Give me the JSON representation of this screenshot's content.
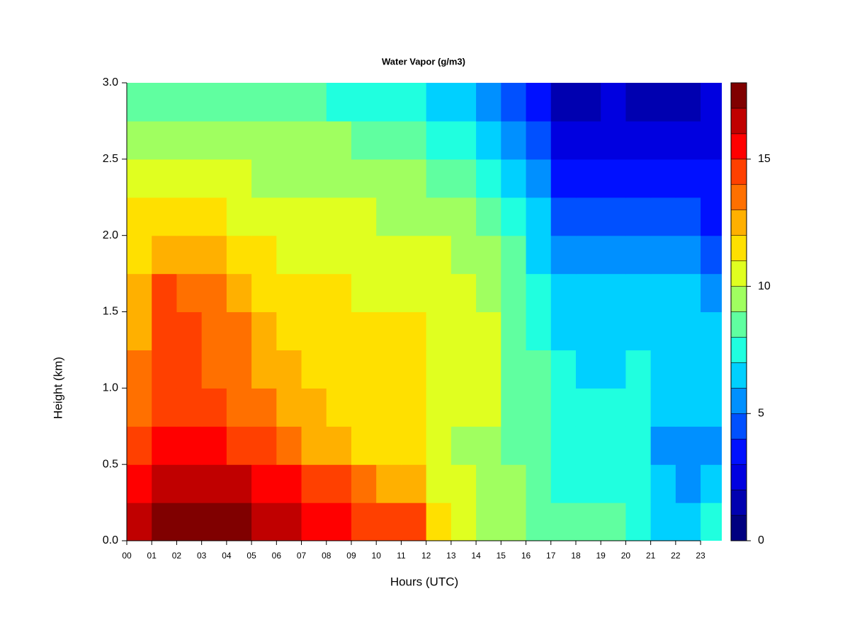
{
  "chart_data": {
    "type": "heatmap",
    "title": "Water Vapor (g/m3)",
    "xlabel": "Hours (UTC)",
    "ylabel": "Height (km)",
    "x": [
      0.5,
      1.5,
      2.5,
      3.5,
      4.5,
      5.5,
      6.5,
      7.5,
      8.5,
      9.5,
      10.5,
      11.5,
      12.5,
      13.5,
      14.5,
      15.5,
      16.5,
      17.5,
      18.5,
      19.5,
      20.5,
      21.5,
      22.5,
      23.5
    ],
    "y": [
      0.125,
      0.375,
      0.625,
      0.875,
      1.125,
      1.375,
      1.625,
      1.875,
      2.125,
      2.375,
      2.625,
      2.875
    ],
    "values": [
      [
        16.5,
        17,
        17.5,
        17.5,
        17,
        16.5,
        16.5,
        15.5,
        15.5,
        14.5,
        14.5,
        14.5,
        11,
        10.5,
        9.5,
        9.5,
        8.5,
        8.5,
        8.5,
        8,
        7.5,
        6.5,
        6.5,
        7.5
      ],
      [
        15.5,
        16,
        16.5,
        16.5,
        16,
        15.5,
        15,
        14.5,
        14.5,
        13,
        12.5,
        12.5,
        10.5,
        10.5,
        9.5,
        9,
        8.5,
        7.5,
        7.5,
        7.5,
        7.5,
        6.5,
        5.5,
        6
      ],
      [
        14,
        15,
        15.5,
        15,
        14.5,
        14,
        13.5,
        12.5,
        12,
        11.5,
        11.5,
        11.5,
        10.5,
        9.5,
        9.5,
        8.5,
        8,
        7.5,
        7,
        7,
        7,
        5.5,
        5.5,
        5.5
      ],
      [
        13,
        14,
        14.5,
        14,
        13.5,
        13,
        12.5,
        12,
        11.5,
        11.5,
        11.5,
        11,
        10.5,
        10.5,
        10,
        8.5,
        8,
        7.5,
        7,
        7,
        7,
        6.5,
        6,
        6
      ],
      [
        13,
        14,
        14.5,
        13.5,
        13.5,
        12.5,
        12,
        11.5,
        11.5,
        11.5,
        11,
        11,
        10.5,
        10.5,
        10,
        8.5,
        8,
        7,
        6.5,
        6.5,
        7,
        6.5,
        6.5,
        6
      ],
      [
        12.5,
        14,
        14,
        13,
        13,
        12,
        11.5,
        11.5,
        11,
        11,
        11,
        11,
        10.5,
        10.5,
        10,
        8.5,
        7.5,
        6.5,
        6.5,
        6.5,
        6.5,
        6.5,
        6.5,
        6
      ],
      [
        12.5,
        14,
        13.5,
        13,
        12.5,
        11.5,
        11,
        11,
        11,
        10.5,
        10.5,
        10.5,
        10.5,
        10,
        9.5,
        8.5,
        7,
        6.5,
        6.5,
        6,
        6,
        6,
        6,
        5.5
      ],
      [
        11.5,
        12.5,
        12.5,
        12,
        11.5,
        11,
        10.5,
        10.5,
        10.5,
        10.5,
        10,
        10,
        10,
        9.5,
        9,
        8,
        6.5,
        5.5,
        5,
        5.5,
        5,
        5,
        5,
        4.5
      ],
      [
        11,
        11.5,
        11.5,
        11,
        10.5,
        10.5,
        10,
        10,
        10,
        10,
        9.5,
        9.5,
        9.5,
        9,
        8.5,
        7.5,
        6,
        4.5,
        4,
        4,
        4.5,
        4,
        4,
        3.5
      ],
      [
        10.5,
        10.5,
        10.5,
        10.5,
        10,
        9.5,
        9.5,
        9.5,
        9.5,
        9.5,
        9,
        9,
        8.5,
        8,
        7.5,
        6.5,
        5,
        3.5,
        3.5,
        3,
        3.5,
        3.5,
        3,
        3
      ],
      [
        9.5,
        9.5,
        9.5,
        9.5,
        9.5,
        9,
        9,
        9,
        9,
        8.5,
        8.5,
        8,
        7.5,
        7,
        6.5,
        5.5,
        4,
        2.5,
        2.5,
        2.5,
        2.5,
        2.5,
        2.5,
        2.5
      ],
      [
        8.5,
        8.5,
        8,
        8,
        8,
        8,
        8,
        8,
        7.5,
        7.5,
        7.5,
        7,
        6.5,
        6,
        5.5,
        4.5,
        3,
        1.5,
        1.5,
        2,
        1.5,
        1.5,
        1.5,
        2.5
      ]
    ],
    "xlim": [
      0,
      23.85
    ],
    "ylim": [
      0,
      3
    ],
    "xticks": [
      {
        "value": 0,
        "label": "00"
      },
      {
        "value": 1,
        "label": "01"
      },
      {
        "value": 2,
        "label": "02"
      },
      {
        "value": 3,
        "label": "03"
      },
      {
        "value": 4,
        "label": "04"
      },
      {
        "value": 5,
        "label": "05"
      },
      {
        "value": 6,
        "label": "06"
      },
      {
        "value": 7,
        "label": "07"
      },
      {
        "value": 8,
        "label": "08"
      },
      {
        "value": 9,
        "label": "09"
      },
      {
        "value": 10,
        "label": "10"
      },
      {
        "value": 11,
        "label": "11"
      },
      {
        "value": 12,
        "label": "12"
      },
      {
        "value": 13,
        "label": "13"
      },
      {
        "value": 14,
        "label": "14"
      },
      {
        "value": 15,
        "label": "15"
      },
      {
        "value": 16,
        "label": "16"
      },
      {
        "value": 17,
        "label": "17"
      },
      {
        "value": 18,
        "label": "18"
      },
      {
        "value": 19,
        "label": "19"
      },
      {
        "value": 20,
        "label": "20"
      },
      {
        "value": 21,
        "label": "21"
      },
      {
        "value": 22,
        "label": "22"
      },
      {
        "value": 23,
        "label": "23"
      }
    ],
    "yticks": [
      {
        "value": 0,
        "label": "0.0"
      },
      {
        "value": 0.5,
        "label": "0.5"
      },
      {
        "value": 1,
        "label": "1.0"
      },
      {
        "value": 1.5,
        "label": "1.5"
      },
      {
        "value": 2,
        "label": "2.0"
      },
      {
        "value": 2.5,
        "label": "2.5"
      },
      {
        "value": 3,
        "label": "3.0"
      }
    ],
    "levels": [
      0,
      1,
      2,
      3,
      4,
      5,
      6,
      7,
      8,
      9,
      10,
      11,
      12,
      13,
      14,
      15,
      16,
      17,
      18
    ],
    "colors": [
      "#000080",
      "#0000b0",
      "#0000e0",
      "#0010ff",
      "#0050ff",
      "#0090ff",
      "#00d0ff",
      "#20ffdf",
      "#60ffa0",
      "#a0ff60",
      "#e0ff20",
      "#ffe000",
      "#ffb000",
      "#ff7000",
      "#ff4000",
      "#ff0000",
      "#c00000",
      "#800000"
    ],
    "colorbar_ticks": [
      0,
      5,
      10,
      15
    ]
  }
}
